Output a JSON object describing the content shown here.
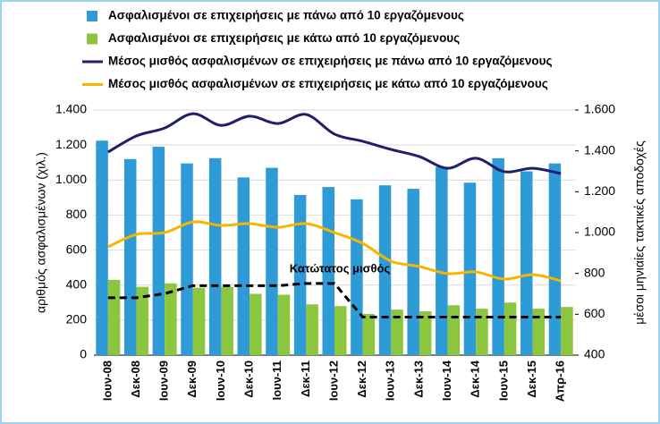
{
  "chart_data": {
    "type": "bar",
    "categories": [
      "Ιουν-08",
      "Δεκ-08",
      "Ιουν-09",
      "Δεκ-09",
      "Ιουν-10",
      "Δεκ-10",
      "Ιουν-11",
      "Δεκ-11",
      "Ιουν-12",
      "Δεκ-12",
      "Ιουν-13",
      "Δεκ-13",
      "Ιουν-14",
      "Δεκ-14",
      "Ιουν-15",
      "Δεκ-15",
      "Απρ-16"
    ],
    "series": [
      {
        "name": "Ασφαλισμένοι σε επιχειρήσεις με πάνω από 10 εργαζόμενους",
        "type": "bar",
        "color": "#2e9bd6",
        "values": [
          1225,
          1120,
          1190,
          1095,
          1125,
          1015,
          1070,
          915,
          960,
          890,
          970,
          950,
          1075,
          985,
          1125,
          1050,
          1095
        ]
      },
      {
        "name": "Ασφαλισμένοι σε επιχειρήσεις με κάτω από 10 εργαζόμενους",
        "type": "bar",
        "color": "#8cc63f",
        "values": [
          430,
          390,
          410,
          385,
          390,
          350,
          345,
          290,
          280,
          235,
          260,
          250,
          285,
          265,
          300,
          265,
          275
        ]
      },
      {
        "name": "Μέσος μισθός ασφαλισμένων σε επιχειρήσεις με πάνω από 10 εργαζόμενους",
        "type": "line",
        "axis": "y2",
        "color": "#1f1f6b",
        "values": [
          1394,
          1473,
          1512,
          1582,
          1525,
          1570,
          1534,
          1578,
          1482,
          1447,
          1407,
          1372,
          1315,
          1364,
          1298,
          1315,
          1289
        ]
      },
      {
        "name": "Μέσος μισθός ασφαλισμένων σε επιχειρήσεις με κάτω από 10 εργαζόμενους",
        "type": "line",
        "axis": "y2",
        "color": "#f7b500",
        "values": [
          930,
          991,
          1000,
          1052,
          1035,
          1044,
          1026,
          1044,
          1000,
          947,
          860,
          834,
          799,
          807,
          772,
          794,
          764
        ]
      },
      {
        "name": "Κατώτατος μισθός",
        "type": "line",
        "axis": "y2",
        "color": "#000000",
        "dashed": true,
        "legend": false,
        "values": [
          681,
          681,
          701,
          740,
          740,
          740,
          740,
          751,
          751,
          586,
          586,
          586,
          586,
          586,
          586,
          586,
          586
        ]
      }
    ],
    "ylabel": "αριθμός ασφαλισμένων (χιλ.)",
    "y2label": "μέσοι μηνιαίες τακτικές αποδοχές",
    "ylim": [
      0,
      1400
    ],
    "yticks": [
      0,
      200,
      400,
      600,
      800,
      {
        "value": 1000,
        "label": "1.000"
      },
      {
        "value": 1200,
        "label": "1.200"
      },
      {
        "value": 1400,
        "label": "1.400"
      }
    ],
    "y2lim": [
      400,
      1600
    ],
    "y2ticks": [
      400,
      600,
      800,
      {
        "value": 1000,
        "label": "1.000"
      },
      {
        "value": 1200,
        "label": "1.200"
      },
      {
        "value": 1400,
        "label": "1.400"
      },
      {
        "value": 1600,
        "label": "1.600"
      }
    ],
    "grid": true
  }
}
